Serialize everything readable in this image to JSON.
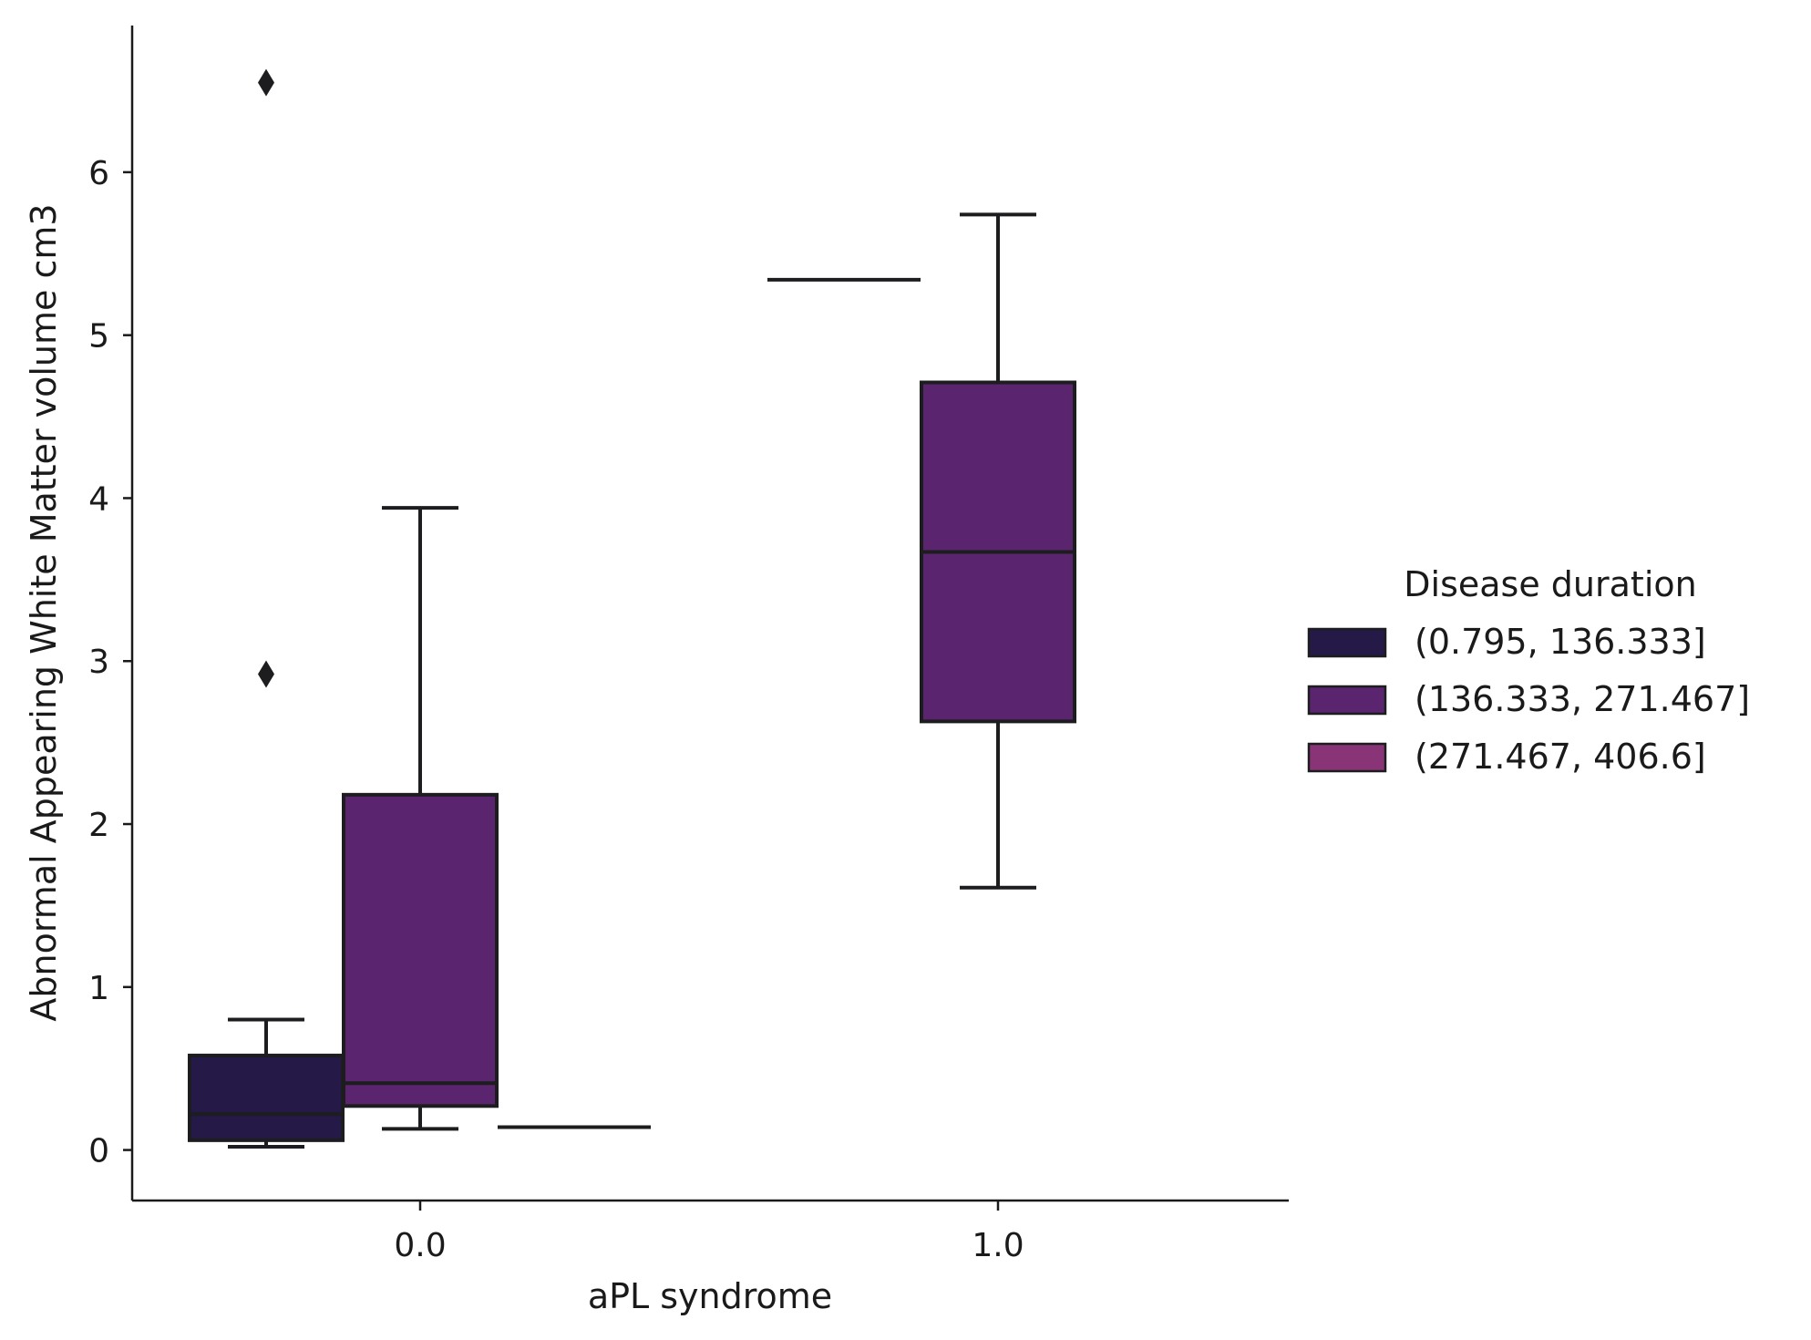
{
  "chart_data": {
    "type": "box",
    "xlabel": "aPL syndrome",
    "ylabel": "Abnormal Appearing White Matter volume cm3",
    "categories": [
      "0.0",
      "1.0"
    ],
    "ylim": [
      -0.31,
      6.9
    ],
    "yticks": [
      0,
      1,
      2,
      3,
      4,
      5,
      6
    ],
    "grid": false,
    "legend": {
      "title": "Disease duration",
      "placement": "right",
      "entries": [
        "(0.795, 136.333]",
        "(136.333, 271.467]",
        "(271.467, 406.6]"
      ]
    },
    "series": [
      {
        "name": "(0.795, 136.333]",
        "color": "#251a47",
        "boxes": [
          {
            "category": "0.0",
            "whislo": 0.02,
            "q1": 0.06,
            "med": 0.22,
            "q3": 0.58,
            "whishi": 0.8,
            "fliers": [
              2.92,
              6.55
            ]
          },
          {
            "category": "1.0",
            "single": 5.34
          }
        ]
      },
      {
        "name": "(136.333, 271.467]",
        "color": "#5a246f",
        "boxes": [
          {
            "category": "0.0",
            "whislo": 0.13,
            "q1": 0.27,
            "med": 0.41,
            "q3": 2.18,
            "whishi": 3.94,
            "fliers": []
          },
          {
            "category": "1.0",
            "whislo": 1.61,
            "q1": 2.63,
            "med": 3.67,
            "q3": 4.71,
            "whishi": 5.74,
            "fliers": []
          }
        ]
      },
      {
        "name": "(271.467, 406.6]",
        "color": "#8a3478",
        "boxes": [
          {
            "category": "0.0",
            "single": 0.14
          }
        ]
      }
    ]
  }
}
